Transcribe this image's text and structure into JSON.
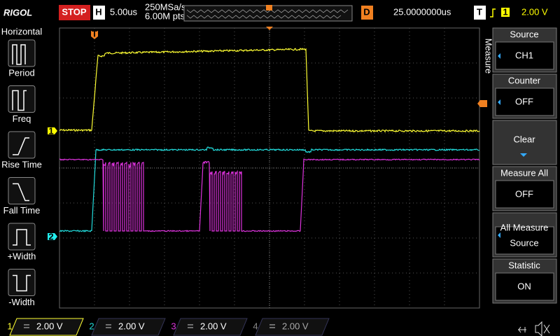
{
  "top_bar": {
    "brand": "RIGOL",
    "run_state": "STOP",
    "timebase_label": "H",
    "timebase": "5.00us",
    "sample_rate": "250MSa/s",
    "memory_depth": "6.00M pts",
    "delay_label": "D",
    "delay": "25.0000000us",
    "trigger_label": "T",
    "trigger_source": "1",
    "trigger_level": "2.00 V"
  },
  "left_menu": {
    "title": "Horizontal",
    "items": [
      "Period",
      "Freq",
      "Rise Time",
      "Fall Time",
      "+Width",
      "-Width"
    ]
  },
  "right_menu": {
    "title": "Measure",
    "items": [
      {
        "label": "Source",
        "value": "CH1"
      },
      {
        "label": "Counter",
        "value": "OFF"
      },
      {
        "label": "Clear"
      },
      {
        "label": "Measure All",
        "value": "OFF"
      },
      {
        "label": "All Measure",
        "value": "Source"
      },
      {
        "label": "Statistic",
        "value": "ON"
      }
    ]
  },
  "markers": {
    "trigger_position": "T",
    "ch1": "1",
    "ch2": "2"
  },
  "channels": [
    {
      "number": "1",
      "scale": "2.00 V"
    },
    {
      "number": "2",
      "scale": "2.00 V"
    },
    {
      "number": "3",
      "scale": "2.00 V"
    },
    {
      "number": "4",
      "scale": "2.00 V"
    }
  ]
}
